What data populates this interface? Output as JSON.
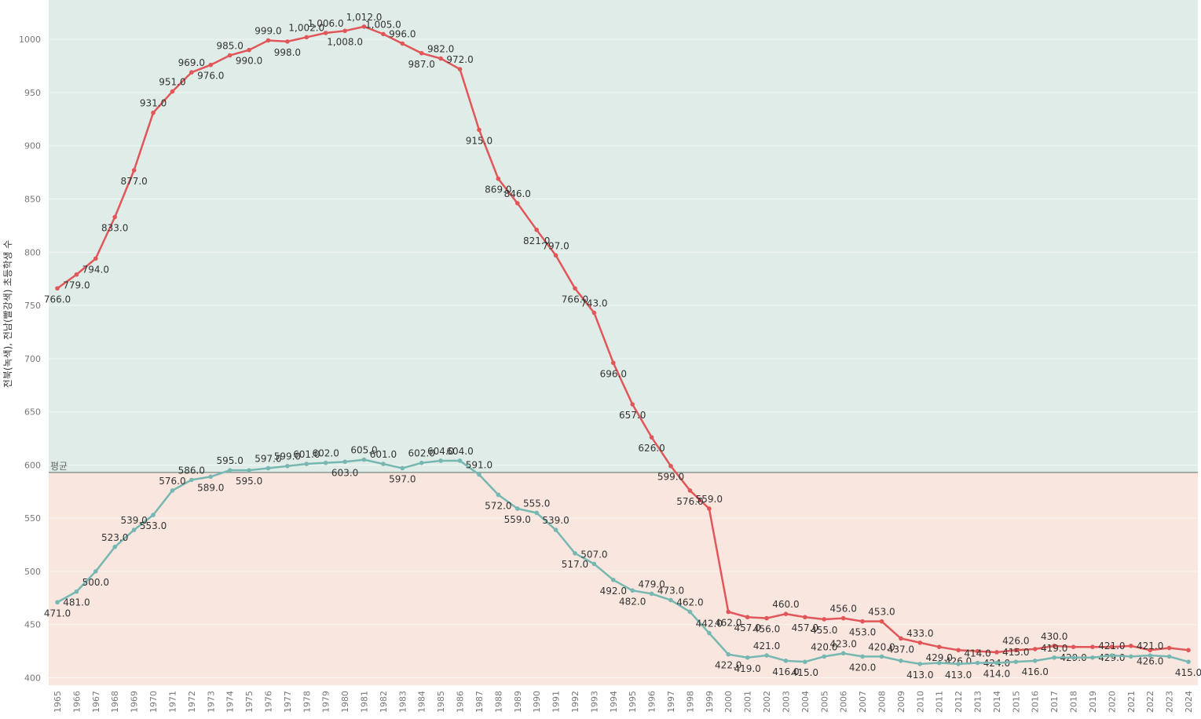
{
  "chart_data": {
    "type": "line",
    "y_label": "전북(녹색), 전남(빨강색) 초등학생 수",
    "categories": [
      "1965",
      "1966",
      "1967",
      "1968",
      "1969",
      "1970",
      "1971",
      "1972",
      "1973",
      "1974",
      "1975",
      "1976",
      "1977",
      "1978",
      "1979",
      "1980",
      "1981",
      "1982",
      "1983",
      "1984",
      "1985",
      "1986",
      "1987",
      "1988",
      "1989",
      "1990",
      "1991",
      "1992",
      "1993",
      "1994",
      "1995",
      "1996",
      "1997",
      "1998",
      "1999",
      "2000",
      "2001",
      "2002",
      "2003",
      "2004",
      "2005",
      "2006",
      "2007",
      "2008",
      "2009",
      "2010",
      "2011",
      "2012",
      "2013",
      "2014",
      "2015",
      "2016",
      "2017",
      "2018",
      "2019",
      "2020",
      "2021",
      "2022",
      "2023",
      "2024"
    ],
    "series": [
      {
        "color": "#e15759",
        "values": [
          766,
          779,
          794,
          833,
          877,
          931,
          951,
          969,
          976,
          985,
          990,
          999,
          998,
          1002,
          1006,
          1008,
          1012,
          1005,
          996,
          987,
          982,
          972,
          915,
          869,
          846,
          821,
          797,
          766,
          743,
          696,
          657,
          626,
          599,
          576,
          559,
          462,
          457,
          456,
          460,
          457,
          455,
          456,
          453,
          453,
          437,
          433,
          429,
          426,
          425,
          424,
          426,
          427,
          430,
          429,
          429,
          429,
          430,
          426,
          428,
          426
        ],
        "value_labels": [
          "766.0",
          "779.0",
          "794.0",
          "833.0",
          "877.0",
          "931.0",
          "951.0",
          "969.0",
          "976.0",
          "985.0",
          "990.0",
          "999.0",
          "998.0",
          "1,002.0",
          "1,006.0",
          "1,008.0",
          "1,012.0",
          "1,005.0",
          "996.0",
          "987.0",
          "982.0",
          "972.0",
          "915.0",
          "869.0",
          "846.0",
          "821.0",
          "797.0",
          "766.0",
          "743.0",
          "696.0",
          "657.0",
          "626.0",
          "599.0",
          "576.0",
          "559.0",
          "462.0",
          "457.0",
          "456.0",
          "460.0",
          "457.0",
          "455.0",
          "456.0",
          "453.0",
          "453.0",
          "437.0",
          "433.0",
          "429.0",
          "426.0",
          null,
          "424.0",
          "426.0",
          null,
          "430.0",
          "429.0",
          null,
          "429.0",
          null,
          "426.0",
          null,
          null
        ]
      },
      {
        "color": "#76b7b2",
        "values": [
          471,
          481,
          500,
          523,
          539,
          553,
          576,
          586,
          589,
          595,
          595,
          597,
          599,
          601,
          602,
          603,
          605,
          601,
          597,
          602,
          604,
          604,
          591,
          572,
          559,
          555,
          539,
          517,
          507,
          492,
          482,
          479,
          473,
          462,
          442,
          422,
          419,
          421,
          416,
          415,
          420,
          423,
          420,
          420,
          416,
          413,
          414,
          413,
          414,
          414,
          415,
          416,
          419,
          419,
          419,
          421,
          420,
          421,
          420,
          415
        ],
        "value_labels": [
          "471.0",
          "481.0",
          "500.0",
          "523.0",
          "539.0",
          "553.0",
          "576.0",
          "586.0",
          "589.0",
          "595.0",
          "595.0",
          "597.0",
          "599.0",
          "601.0",
          "602.0",
          "603.0",
          "605.0",
          "601.0",
          "597.0",
          "602.0",
          "604.0",
          "604.0",
          "591.0",
          "572.0",
          "559.0",
          "555.0",
          "539.0",
          "517.0",
          "507.0",
          "492.0",
          "482.0",
          "479.0",
          "473.0",
          "462.0",
          "442.0",
          "422.0",
          "419.0",
          "421.0",
          "416.0",
          "415.0",
          "420.0",
          "423.0",
          "420.0",
          "420.0",
          null,
          "413.0",
          null,
          "413.0",
          "414.0",
          "414.0",
          "415.0",
          "416.0",
          "419.0",
          null,
          null,
          "421.0",
          null,
          "421.0",
          null,
          "415.0"
        ]
      }
    ],
    "reference_line": {
      "label": "평균",
      "value": 593
    },
    "ylim": [
      393,
      1037
    ],
    "yticks": [
      400,
      450,
      500,
      550,
      600,
      650,
      700,
      750,
      800,
      850,
      900,
      950,
      1000
    ],
    "grid": true
  }
}
